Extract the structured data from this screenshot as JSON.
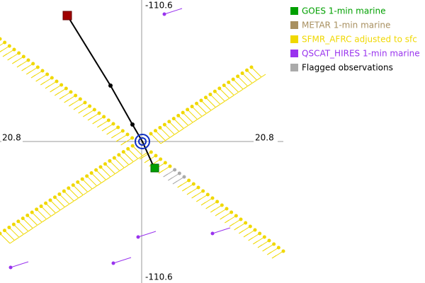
{
  "axes": {
    "top": "-110.6",
    "bottom": "-110.6",
    "left": "20.8",
    "right": "20.8"
  },
  "legend": [
    {
      "label": "GOES 1-min marine",
      "color": "#00a000"
    },
    {
      "label": "METAR 1-min marine",
      "color": "#a89060"
    },
    {
      "label": "SFMR_AFRC adjusted to sfc",
      "color": "#f0d800"
    },
    {
      "label": "QSCAT_HIRES 1-min marine",
      "color": "#9933ee"
    },
    {
      "label": "Flagged observations",
      "color": "#aaaaaa"
    }
  ]
}
